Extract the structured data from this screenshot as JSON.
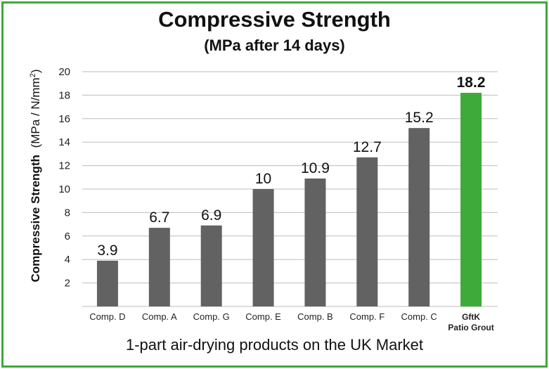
{
  "chart_data": {
    "type": "bar",
    "title": "Compressive Strength",
    "subtitle": "(MPa after 14 days)",
    "xlabel": "1-part air-drying products on the UK Market",
    "ylabel_bold": "Compressive Strength",
    "ylabel_unit": "(MPa / N/mm",
    "ylabel_sup": "2",
    "ylabel_close": ")",
    "ylim": [
      0,
      20
    ],
    "yticks": [
      2,
      4,
      6,
      8,
      10,
      12,
      14,
      16,
      18,
      20
    ],
    "grid": true,
    "categories": [
      [
        "Comp. D"
      ],
      [
        "Comp. A"
      ],
      [
        "Comp. G"
      ],
      [
        "Comp. E"
      ],
      [
        "Comp. B"
      ],
      [
        "Comp. F"
      ],
      [
        "Comp. C"
      ],
      [
        "GftK",
        "Patio Grout"
      ]
    ],
    "values": [
      3.9,
      6.7,
      6.9,
      10,
      10.9,
      12.7,
      15.2,
      18.2
    ],
    "value_labels": [
      "3.9",
      "6.7",
      "6.9",
      "10",
      "10.9",
      "12.7",
      "15.2",
      "18.2"
    ],
    "highlight_index": 7,
    "colors": {
      "bar": "#626262",
      "highlight": "#3daa3a",
      "grid": "#bdbdbd",
      "frame": "#3daa3a"
    }
  }
}
